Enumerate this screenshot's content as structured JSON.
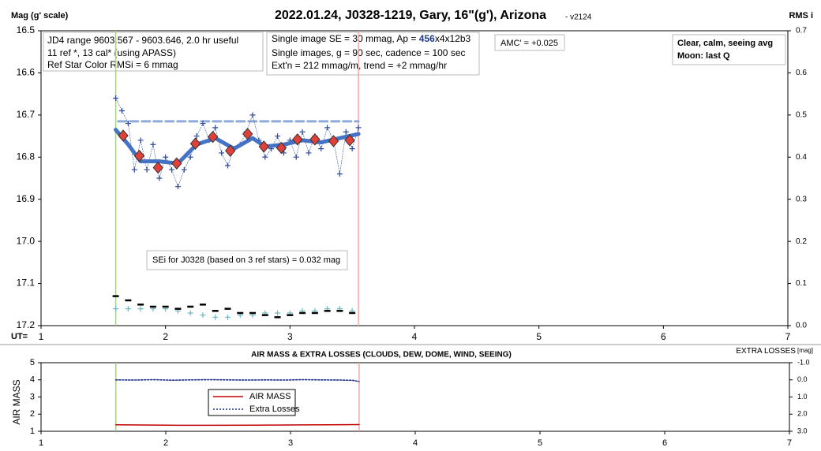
{
  "chart_data": [
    {
      "type": "scatter",
      "title": "2022.01.24, J0328-1219, Gary, 16\"(g'), Arizona",
      "subtitle": "- v2124",
      "y_label": "Mag (g' scale)",
      "y2_label": "RMS i",
      "x_label": "UT=",
      "xlim": [
        1,
        7
      ],
      "xticks": [
        1,
        2,
        3,
        4,
        5,
        6,
        7
      ],
      "ylim": [
        16.5,
        17.2
      ],
      "y_inverted": true,
      "yticks": [
        16.5,
        16.6,
        16.7,
        16.8,
        16.9,
        {
          "value": 17,
          "label": "17.0"
        },
        17.1,
        17.2
      ],
      "y2lim": [
        0,
        0.7
      ],
      "y2ticks": [
        {
          "value": 0,
          "label": "0.0"
        },
        0.1,
        0.2,
        0.3,
        0.4,
        0.5,
        0.6,
        0.7
      ],
      "markers": [
        {
          "x": 1.6,
          "color": "#a8d08d"
        },
        {
          "x": 3.55,
          "color": "#f4a6a6"
        }
      ],
      "series": [
        {
          "style": "dashed-line",
          "color": "#8eaad8",
          "x": [
            1.62,
            3.55
          ],
          "values": [
            16.715,
            16.715
          ]
        },
        {
          "style": "plus-dotted",
          "color": "#2f4a9a",
          "x": [
            1.6,
            1.65,
            1.7,
            1.75,
            1.8,
            1.85,
            1.9,
            1.95,
            2.0,
            2.05,
            2.1,
            2.15,
            2.2,
            2.25,
            2.3,
            2.35,
            2.4,
            2.45,
            2.5,
            2.55,
            2.6,
            2.65,
            2.7,
            2.75,
            2.8,
            2.85,
            2.9,
            2.95,
            3.0,
            3.05,
            3.1,
            3.15,
            3.2,
            3.25,
            3.3,
            3.35,
            3.4,
            3.45,
            3.5,
            3.55
          ],
          "values": [
            16.66,
            16.69,
            16.72,
            16.83,
            16.76,
            16.83,
            16.77,
            16.85,
            16.8,
            16.83,
            16.87,
            16.83,
            16.8,
            16.75,
            16.72,
            16.76,
            16.73,
            16.79,
            16.82,
            16.78,
            16.77,
            16.74,
            16.7,
            16.76,
            16.8,
            16.78,
            16.75,
            16.79,
            16.76,
            16.8,
            16.74,
            16.79,
            16.75,
            16.78,
            16.73,
            16.76,
            16.84,
            16.74,
            16.78,
            16.73
          ]
        },
        {
          "style": "thick-line",
          "color": "#4472c4",
          "x": [
            1.6,
            1.7,
            1.8,
            1.95,
            2.1,
            2.25,
            2.4,
            2.55,
            2.7,
            2.8,
            2.95,
            3.1,
            3.25,
            3.4,
            3.55
          ],
          "values": [
            16.735,
            16.77,
            16.81,
            16.81,
            16.815,
            16.77,
            16.755,
            16.78,
            16.755,
            16.775,
            16.77,
            16.76,
            16.765,
            16.755,
            16.745
          ]
        },
        {
          "style": "diamond",
          "color": "#e0403a",
          "x": [
            1.66,
            1.79,
            1.94,
            2.09,
            2.24,
            2.38,
            2.52,
            2.66,
            2.79,
            2.93,
            3.06,
            3.2,
            3.35,
            3.48
          ],
          "values": [
            16.749,
            16.797,
            16.825,
            16.815,
            16.768,
            16.752,
            16.785,
            16.745,
            16.775,
            16.778,
            16.758,
            16.758,
            16.762,
            16.76
          ]
        },
        {
          "style": "plus",
          "color": "#6fb8c0",
          "axis": "y2",
          "x": [
            1.6,
            1.7,
            1.8,
            1.9,
            2.0,
            2.1,
            2.2,
            2.3,
            2.4,
            2.5,
            2.6,
            2.7,
            2.8,
            2.9,
            3.0,
            3.1,
            3.2,
            3.3,
            3.4,
            3.5
          ],
          "values": [
            0.04,
            0.04,
            0.04,
            0.04,
            0.04,
            0.035,
            0.03,
            0.025,
            0.02,
            0.02,
            0.025,
            0.025,
            0.03,
            0.03,
            0.03,
            0.035,
            0.035,
            0.04,
            0.04,
            0.035
          ]
        },
        {
          "style": "dash",
          "color": "#000000",
          "axis": "y2",
          "x": [
            1.6,
            1.7,
            1.8,
            1.9,
            2.0,
            2.1,
            2.2,
            2.3,
            2.4,
            2.5,
            2.6,
            2.7,
            2.8,
            2.9,
            3.0,
            3.1,
            3.2,
            3.3,
            3.4,
            3.5
          ],
          "values": [
            0.07,
            0.06,
            0.05,
            0.045,
            0.045,
            0.04,
            0.045,
            0.05,
            0.035,
            0.04,
            0.03,
            0.03,
            0.025,
            0.02,
            0.025,
            0.03,
            0.03,
            0.035,
            0.035,
            0.03
          ]
        }
      ],
      "annotations": {
        "info_box": [
          "JD4 range 9603.567 - 9603.646, 2.0 hr useful",
          "11 ref *, 13 cal* (using APASS)",
          "Ref Star Color RMSi = 6 mmag"
        ],
        "setup_box": [
          [
            "Single image SE = 30 mmag, Ap = ",
            "456",
            "x4x12b3"
          ],
          "Single images, g = 90 sec, cadence = 100 sec",
          "Ext'n = 212 mmag/m, trend = +2 mmag/hr"
        ],
        "amc": "AMC' = +0.025",
        "conditions": [
          "Clear, calm, seeing avg",
          "Moon: last Q"
        ],
        "sei": "SEi for J0328 (based on 3 ref stars) = 0.032 mag"
      }
    },
    {
      "type": "line",
      "title": "AIR MASS & EXTRA LOSSES (CLOUDS, DEW, DOME, WIND, SEEING)",
      "y_label": "AIR MASS",
      "y2_label": [
        "EXTRA LOSSES",
        "[mag]"
      ],
      "xlim": [
        1,
        7
      ],
      "xticks": [
        1,
        2,
        3,
        4,
        5,
        6,
        7
      ],
      "ylim": [
        1,
        5
      ],
      "yticks": [
        1,
        2,
        3,
        4,
        5
      ],
      "y2lim": [
        -1,
        3
      ],
      "y2_inverted": true,
      "y2ticks": [
        {
          "value": -1,
          "label": "-1.0"
        },
        {
          "value": 0,
          "label": "0.0"
        },
        {
          "value": 1,
          "label": "1.0"
        },
        {
          "value": 2,
          "label": "2.0"
        },
        {
          "value": 3,
          "label": "3.0"
        }
      ],
      "markers": [
        {
          "x": 1.6,
          "color": "#a8d08d"
        },
        {
          "x": 3.55,
          "color": "#f4a6a6"
        }
      ],
      "series": [
        {
          "name": "AIR MASS",
          "color": "#c00000",
          "x": [
            1.6,
            1.8,
            2.0,
            2.1,
            2.4,
            2.7,
            3.0,
            3.3,
            3.55
          ],
          "values": [
            1.38,
            1.37,
            1.36,
            1.35,
            1.35,
            1.36,
            1.37,
            1.38,
            1.39
          ]
        },
        {
          "name": "Extra Losses",
          "color": "#1f3080",
          "axis": "y2",
          "dotted": true,
          "x": [
            1.6,
            1.75,
            1.9,
            2.05,
            2.2,
            2.35,
            2.5,
            2.65,
            2.8,
            2.95,
            3.1,
            3.25,
            3.4,
            3.5,
            3.55
          ],
          "values": [
            0.0,
            0.01,
            -0.01,
            0.02,
            0.0,
            -0.01,
            0.0,
            0.01,
            0.0,
            0.01,
            -0.01,
            0.0,
            0.01,
            0.03,
            0.1
          ]
        }
      ]
    }
  ]
}
